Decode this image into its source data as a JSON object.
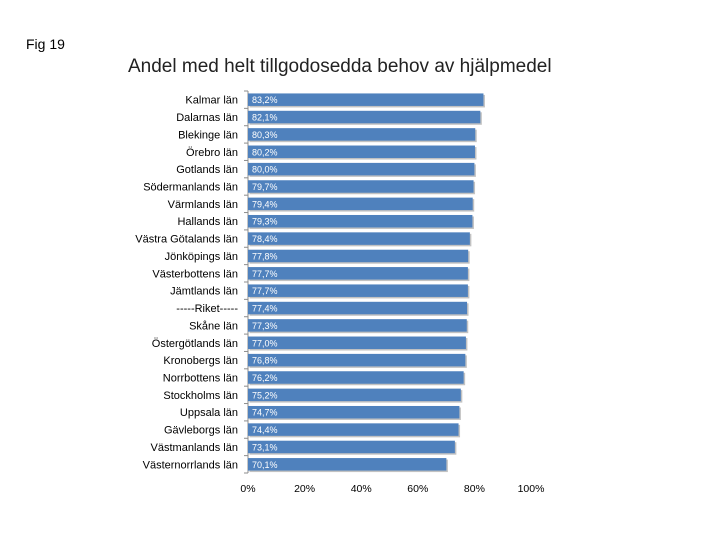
{
  "figure_label": "Fig 19",
  "chart_data": {
    "type": "bar",
    "orientation": "horizontal",
    "title": "Andel med helt tillgodosedda behov av hjälpmedel",
    "xlabel": "",
    "ylabel": "",
    "xlim": [
      0,
      100
    ],
    "grid": false,
    "bar_color": "#4f81bd",
    "categories": [
      "Kalmar län",
      "Dalarnas län",
      "Blekinge län",
      "Örebro län",
      "Gotlands län",
      "Södermanlands län",
      "Värmlands län",
      "Hallands län",
      "Västra Götalands län",
      "Jönköpings län",
      "Västerbottens län",
      "Jämtlands län",
      "-----Riket-----",
      "Skåne län",
      "Östergötlands län",
      "Kronobergs län",
      "Norrbottens län",
      "Stockholms län",
      "Uppsala län",
      "Gävleborgs län",
      "Västmanlands län",
      "Västernorrlands län"
    ],
    "values": [
      83.2,
      82.1,
      80.3,
      80.2,
      80.0,
      79.7,
      79.4,
      79.3,
      78.4,
      77.8,
      77.7,
      77.7,
      77.4,
      77.3,
      77.0,
      76.8,
      76.2,
      75.2,
      74.7,
      74.4,
      73.1,
      70.1
    ],
    "value_labels": [
      "83,2%",
      "82,1%",
      "80,3%",
      "80,2%",
      "80,0%",
      "79,7%",
      "79,4%",
      "79,3%",
      "78,4%",
      "77,8%",
      "77,7%",
      "77,7%",
      "77,4%",
      "77,3%",
      "77,0%",
      "76,8%",
      "76,2%",
      "75,2%",
      "74,7%",
      "74,4%",
      "73,1%",
      "70,1%"
    ],
    "x_ticks": [
      0,
      20,
      40,
      60,
      80,
      100
    ],
    "x_tick_labels": [
      "0%",
      "20%",
      "40%",
      "60%",
      "80%",
      "100%"
    ]
  }
}
